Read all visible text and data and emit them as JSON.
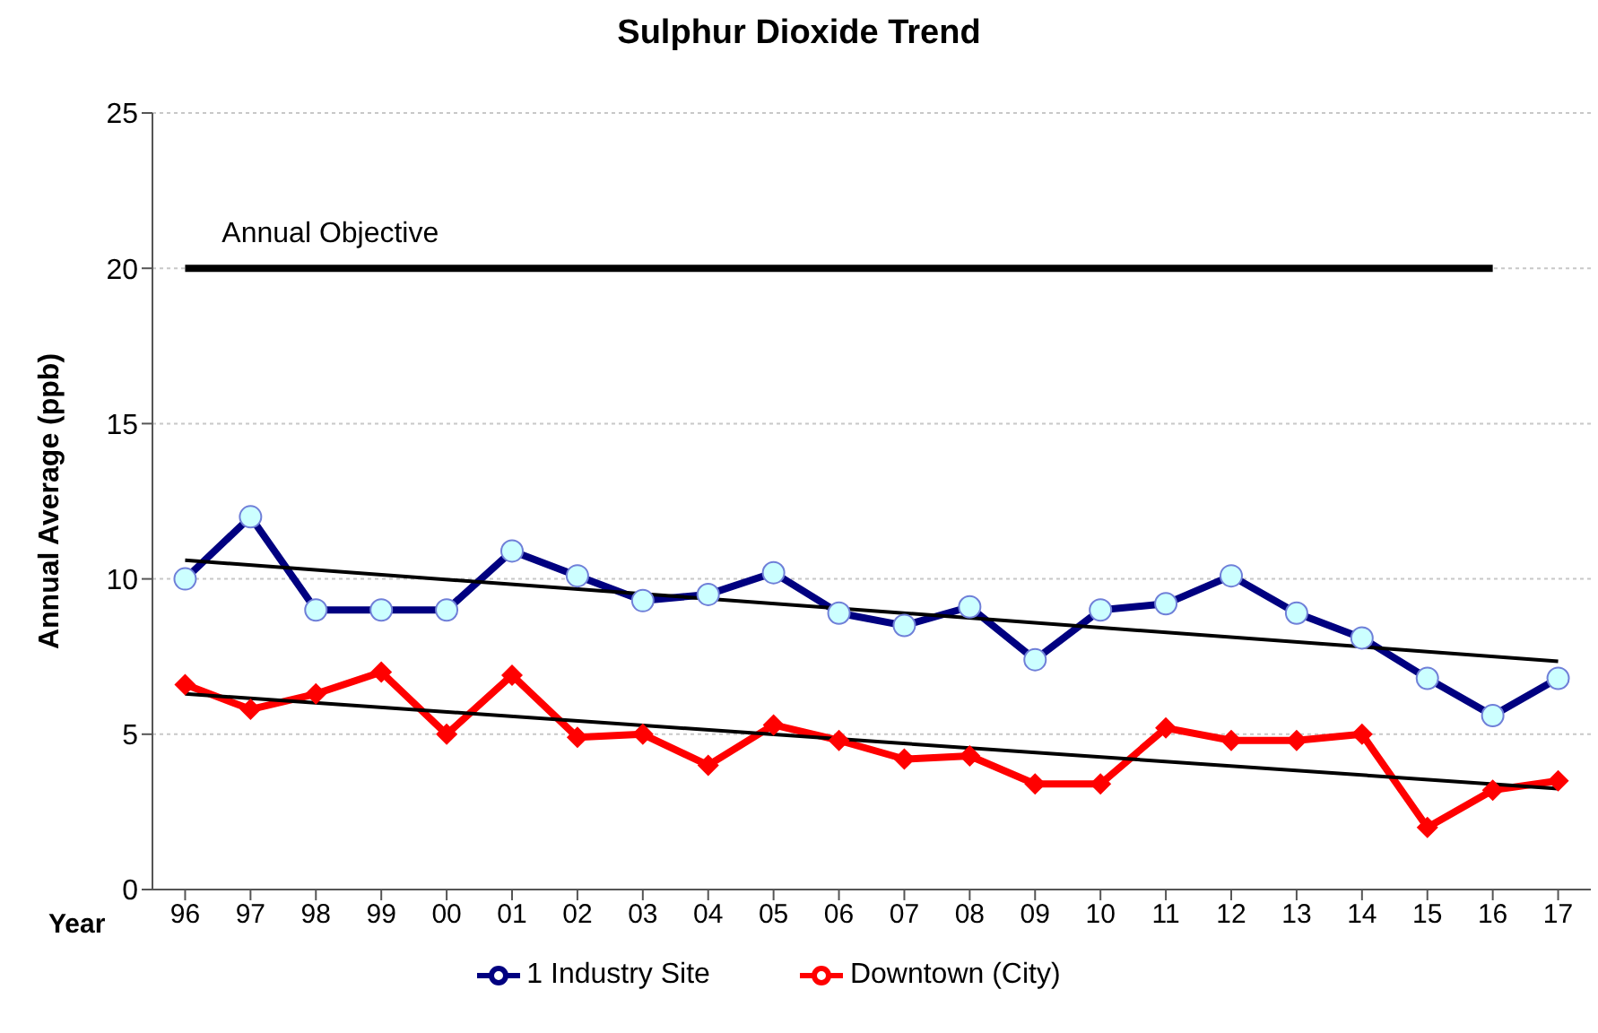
{
  "chart_data": {
    "type": "line",
    "title": "Sulphur Dioxide Trend",
    "xlabel": "Year",
    "ylabel": "Annual Average (ppb)",
    "categories": [
      "96",
      "97",
      "98",
      "99",
      "00",
      "01",
      "02",
      "03",
      "04",
      "05",
      "06",
      "07",
      "08",
      "09",
      "10",
      "11",
      "12",
      "13",
      "14",
      "15",
      "16",
      "17"
    ],
    "series": [
      {
        "name": "1 Industry Site",
        "color": "#000080",
        "marker": "circle",
        "values": [
          10,
          12,
          9,
          9,
          9,
          10.9,
          10.1,
          9.3,
          9.5,
          10.2,
          8.9,
          8.5,
          9.1,
          7.4,
          9,
          9.2,
          10.1,
          8.9,
          8.1,
          6.8,
          5.6,
          6.8
        ]
      },
      {
        "name": "Downtown (City)",
        "color": "#ff0000",
        "marker": "diamond",
        "values": [
          6.6,
          5.8,
          6.3,
          7,
          5,
          6.9,
          4.9,
          5,
          4,
          5.3,
          4.8,
          4.2,
          4.3,
          3.4,
          3.4,
          5.2,
          4.8,
          4.8,
          5,
          2,
          3.2,
          3.5
        ]
      },
      {
        "type": "line",
        "color": "#000000",
        "marker": "none",
        "x": [
          "96",
          "17"
        ],
        "values": [
          10.6,
          7.35
        ]
      },
      {
        "type": "line",
        "color": "#000000",
        "marker": "none",
        "x": [
          "96",
          "17"
        ],
        "values": [
          6.3,
          3.25
        ]
      },
      {
        "type": "line",
        "color": "#000000",
        "marker": "none",
        "values": [
          20,
          20,
          20,
          20,
          20,
          20,
          20,
          20,
          20,
          20,
          20,
          20,
          20,
          20,
          20,
          20,
          20,
          20,
          20,
          20,
          20,
          null
        ]
      }
    ],
    "annotations": [
      {
        "text": "Annual Objective",
        "x": "97",
        "y": 20
      }
    ],
    "ylim": [
      0,
      25
    ],
    "yticks": [
      0,
      5,
      10,
      15,
      20,
      25
    ],
    "grid": "y",
    "legend": "bottom"
  }
}
